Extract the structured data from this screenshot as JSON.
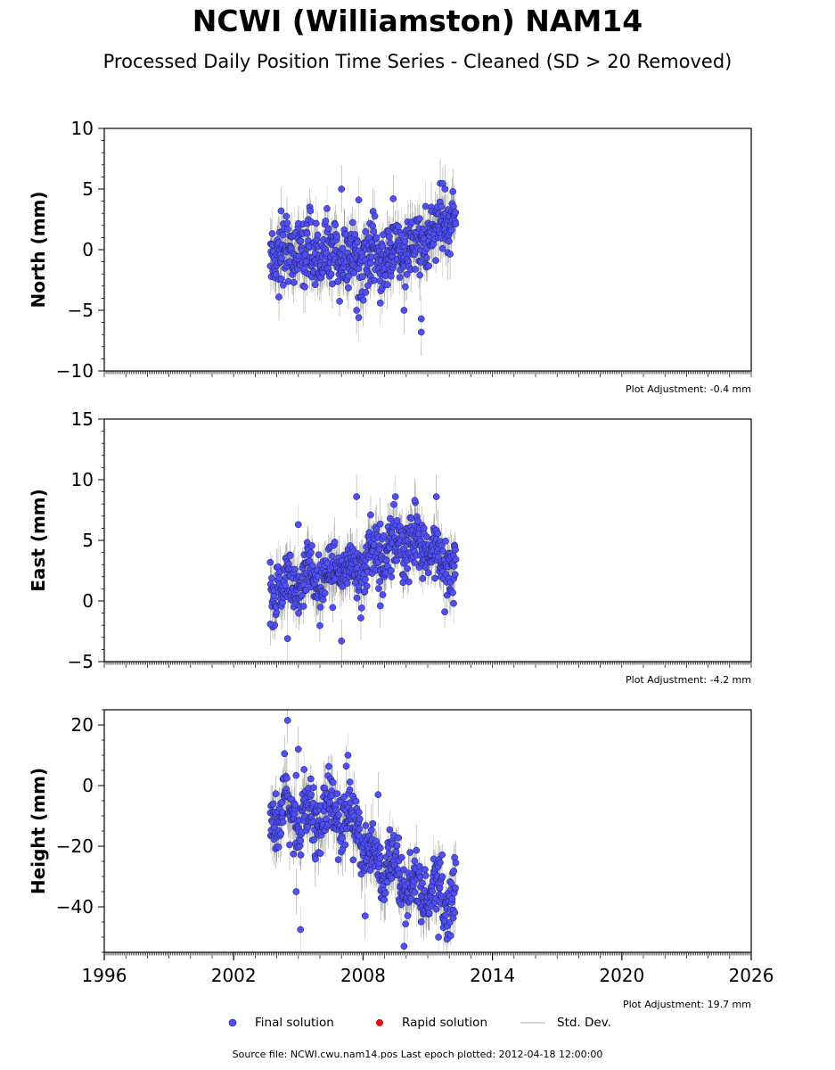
{
  "title": "NCWI (Williamston) NAM14",
  "subtitle": "Processed Daily Position Time Series - Cleaned (SD > 20 Removed)",
  "footer": "Source file: NCWI.cwu.nam14.pos  Last epoch plotted: 2012-04-18 12:00:00",
  "legend": {
    "final": "Final solution",
    "rapid": "Rapid solution",
    "std": "Std. Dev."
  },
  "colors": {
    "final_fill": "#4f4ff2",
    "final_edge": "#1a1a55",
    "rapid": "#dd1111",
    "std_dev": "#c8c8c8",
    "std_dev_dense": "#555555"
  },
  "chart_data": [
    {
      "type": "scatter",
      "ylabel": "North (mm)",
      "ylim": [
        -10,
        10
      ],
      "yticks": [
        -10,
        -5,
        0,
        5,
        10
      ],
      "xlim": [
        1996,
        2026
      ],
      "adjustment": "Plot Adjustment: -0.4 mm",
      "time_span": [
        2003.7,
        2012.3
      ],
      "trend": [
        [
          2003.7,
          0.0
        ],
        [
          2006.0,
          -0.3
        ],
        [
          2008.0,
          -1.0
        ],
        [
          2009.5,
          -0.4
        ],
        [
          2010.5,
          0.3
        ],
        [
          2011.3,
          1.3
        ],
        [
          2012.3,
          2.6
        ]
      ],
      "scatter_sd": 1.3,
      "annual_amplitude": 0.5,
      "outliers": [
        [
          2007.0,
          5.0
        ],
        [
          2007.8,
          4.1
        ],
        [
          2009.4,
          4.2
        ],
        [
          2007.7,
          -5.0
        ],
        [
          2007.8,
          -5.6
        ],
        [
          2009.9,
          -5.0
        ],
        [
          2010.7,
          -6.8
        ],
        [
          2010.7,
          -5.7
        ],
        [
          2004.2,
          3.2
        ],
        [
          2004.1,
          -3.9
        ],
        [
          2008.8,
          -4.4
        ],
        [
          2011.8,
          5.0
        ]
      ],
      "series": [
        {
          "name": "Final solution",
          "role": "points"
        },
        {
          "name": "Std. Dev.",
          "role": "error_bars"
        }
      ]
    },
    {
      "type": "scatter",
      "ylabel": "East (mm)",
      "ylim": [
        -5,
        15
      ],
      "yticks": [
        -5,
        0,
        5,
        10,
        15
      ],
      "xlim": [
        1996,
        2026
      ],
      "adjustment": "Plot Adjustment: -4.2 mm",
      "time_span": [
        2003.7,
        2012.3
      ],
      "trend": [
        [
          2003.7,
          0.8
        ],
        [
          2005.0,
          1.8
        ],
        [
          2006.5,
          2.2
        ],
        [
          2008.0,
          3.2
        ],
        [
          2009.0,
          4.3
        ],
        [
          2010.0,
          4.8
        ],
        [
          2011.0,
          4.0
        ],
        [
          2012.3,
          3.2
        ]
      ],
      "scatter_sd": 1.2,
      "annual_amplitude": 0.8,
      "outliers": [
        [
          2007.7,
          8.6
        ],
        [
          2009.5,
          8.6
        ],
        [
          2010.4,
          8.3
        ],
        [
          2011.4,
          8.6
        ],
        [
          2004.5,
          -3.1
        ],
        [
          2007.0,
          -3.3
        ],
        [
          2003.7,
          -1.9
        ],
        [
          2005.0,
          6.3
        ],
        [
          2008.8,
          -0.4
        ],
        [
          2007.9,
          -1.4
        ],
        [
          2012.2,
          -0.2
        ]
      ],
      "series": [
        {
          "name": "Final solution",
          "role": "points"
        },
        {
          "name": "Std. Dev.",
          "role": "error_bars"
        }
      ]
    },
    {
      "type": "scatter",
      "ylabel": "Height (mm)",
      "ylim": [
        -55,
        25
      ],
      "yticks": [
        -40,
        -20,
        0,
        20
      ],
      "xlim": [
        1996,
        2026
      ],
      "xticks": [
        1996,
        2002,
        2008,
        2014,
        2020,
        2026
      ],
      "adjustment": "Plot Adjustment: 19.7 mm",
      "time_span": [
        2003.7,
        2012.3
      ],
      "trend": [
        [
          2003.7,
          -10
        ],
        [
          2005.0,
          -9
        ],
        [
          2006.5,
          -9
        ],
        [
          2007.5,
          -12
        ],
        [
          2008.5,
          -24
        ],
        [
          2009.5,
          -31
        ],
        [
          2010.5,
          -34
        ],
        [
          2011.5,
          -36
        ],
        [
          2012.3,
          -37
        ]
      ],
      "scatter_sd": 5.0,
      "annual_amplitude": 4.5,
      "outliers": [
        [
          2004.5,
          21.5
        ],
        [
          2005.1,
          -47.5
        ],
        [
          2004.9,
          -35
        ],
        [
          2009.9,
          -53
        ],
        [
          2011.5,
          -50
        ],
        [
          2008.1,
          -43
        ],
        [
          2005.0,
          12
        ],
        [
          2007.3,
          10
        ],
        [
          2008.7,
          -3
        ]
      ],
      "series": [
        {
          "name": "Final solution",
          "role": "points"
        },
        {
          "name": "Std. Dev.",
          "role": "error_bars"
        }
      ]
    }
  ]
}
